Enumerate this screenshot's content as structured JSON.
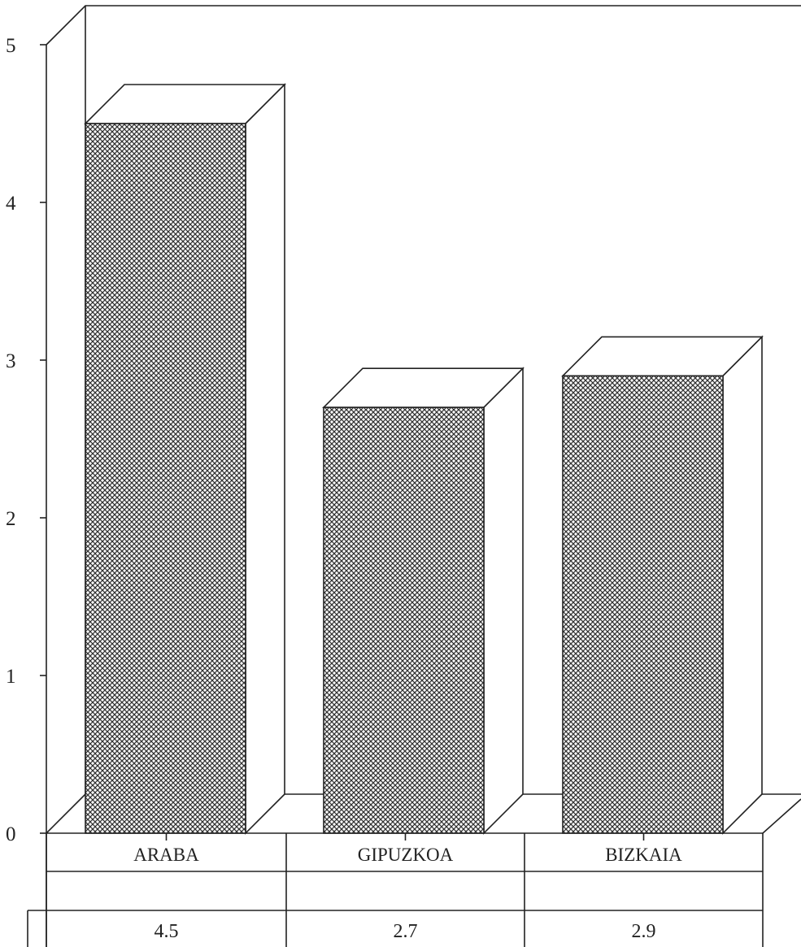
{
  "chart_data": {
    "type": "bar",
    "categories": [
      "ARABA",
      "GIPUZKOA",
      "BIZKAIA"
    ],
    "values": [
      4.5,
      2.7,
      2.9
    ],
    "value_labels": [
      "4.5",
      "2.7",
      "2.9"
    ],
    "ylim": [
      0,
      5
    ],
    "yticks": [
      "0",
      "1",
      "2",
      "3",
      "4",
      "5"
    ],
    "style": "3d-hatched",
    "colors": {
      "bar_fill": "#9a9a9a",
      "line": "#222222",
      "background": "#ffffff"
    }
  }
}
